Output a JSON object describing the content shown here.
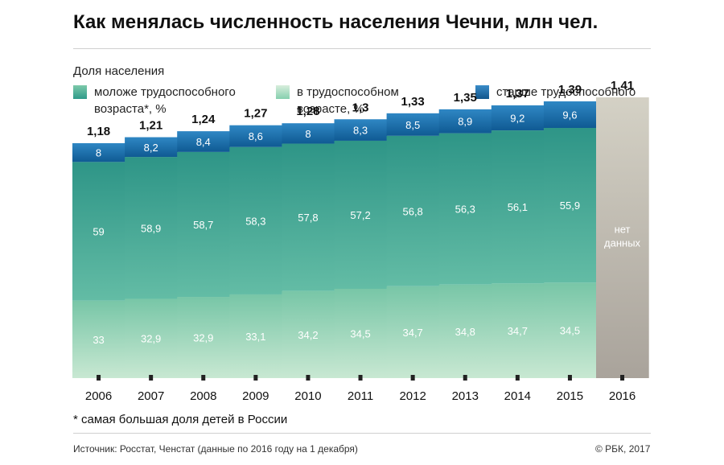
{
  "title": "Как менялась численность населения Чечни, млн чел.",
  "legend": {
    "heading": "Доля населения",
    "items": [
      {
        "key": "young",
        "label": "моложе трудоспособного возраста*, %",
        "color_top": "#7dc9aa",
        "color_bottom": "#2f9a8a"
      },
      {
        "key": "working",
        "label": "в трудоспособном возрасте, %",
        "color_top": "#d8eedc",
        "color_bottom": "#86cfae"
      },
      {
        "key": "old",
        "label": "старше трудоспособного возраста, %",
        "color_top": "#3a8cc8",
        "color_bottom": "#12568c"
      }
    ]
  },
  "colors": {
    "band_young_top": "#2e9587",
    "band_young_bottom": "#63bca5",
    "band_working_top": "#78c6a7",
    "band_working_bottom": "#c8e8d2",
    "band_old_top": "#2f87c4",
    "band_old_bottom": "#0f5a93",
    "nodata_top": "#d4d1c5",
    "nodata_bottom": "#a9a39b",
    "marker": "#222222",
    "text_dark": "#111111",
    "text_light": "#ffffff"
  },
  "chart_data": {
    "type": "bar",
    "subtype": "stacked-area-steps",
    "title": "Как менялась численность населения Чечни, млн чел.",
    "categories": [
      "2006",
      "2007",
      "2008",
      "2009",
      "2010",
      "2011",
      "2012",
      "2013",
      "2014",
      "2015",
      "2016"
    ],
    "totals": [
      1.18,
      1.21,
      1.24,
      1.27,
      1.28,
      1.3,
      1.33,
      1.35,
      1.37,
      1.39,
      1.41
    ],
    "totals_labels": [
      "1,18",
      "1,21",
      "1,24",
      "1,27",
      "1,28",
      "1,3",
      "1,33",
      "1,35",
      "1,37",
      "1,39",
      "1,41"
    ],
    "series": [
      {
        "name": "в трудоспособном возрасте, %",
        "key": "working",
        "values": [
          33,
          32.9,
          32.9,
          33.1,
          34.2,
          34.5,
          34.7,
          34.8,
          34.7,
          34.5,
          null
        ],
        "labels": [
          "33",
          "32,9",
          "32,9",
          "33,1",
          "34,2",
          "34,5",
          "34,7",
          "34,8",
          "34,7",
          "34,5",
          ""
        ]
      },
      {
        "name": "моложе трудоспособного возраста*, %",
        "key": "young",
        "values": [
          59,
          58.9,
          58.7,
          58.3,
          57.8,
          57.2,
          56.8,
          56.3,
          56.1,
          55.9,
          null
        ],
        "labels": [
          "59",
          "58,9",
          "58,7",
          "58,3",
          "57,8",
          "57,2",
          "56,8",
          "56,3",
          "56,1",
          "55,9",
          ""
        ]
      },
      {
        "name": "старше трудоспособного возраста, %",
        "key": "old",
        "values": [
          8,
          8.2,
          8.4,
          8.6,
          8,
          8.3,
          8.5,
          8.9,
          9.2,
          9.6,
          null
        ],
        "labels": [
          "8",
          "8,2",
          "8,4",
          "8,6",
          "8",
          "8,3",
          "8,5",
          "8,9",
          "9,2",
          "9,6",
          ""
        ]
      }
    ],
    "no_data_label": "нет данных",
    "ylim": [
      0,
      1.41
    ],
    "xlabel": "",
    "ylabel": ""
  },
  "footnote": "* самая большая доля детей в России",
  "source": "Источник: Росстат, Ченстат (данные по 2016 году на 1 декабря)",
  "copyright": "© РБК, 2017"
}
